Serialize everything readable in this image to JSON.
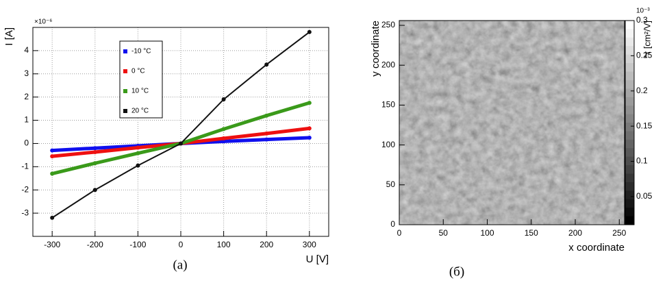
{
  "chart_data": [
    {
      "type": "line",
      "caption": "(a)",
      "x_label": "U [V]",
      "y_label": "I [A]",
      "y_multiplier": "×10⁻⁶",
      "x": [
        -300,
        -200,
        -100,
        0,
        100,
        200,
        300
      ],
      "series": [
        {
          "name": "-10 °C",
          "color": "#1010ee",
          "values": [
            -0.3,
            -0.2,
            -0.1,
            0,
            0.09,
            0.17,
            0.25
          ]
        },
        {
          "name": "0 °C",
          "color": "#ee1010",
          "values": [
            -0.55,
            -0.37,
            -0.18,
            0,
            0.22,
            0.43,
            0.65
          ]
        },
        {
          "name": "10 °C",
          "color": "#3a9a1a",
          "values": [
            -1.3,
            -0.85,
            -0.42,
            0,
            0.62,
            1.2,
            1.75
          ]
        },
        {
          "name": "20 °C",
          "color": "#111111",
          "values": [
            -3.2,
            -2.0,
            -0.95,
            0,
            1.9,
            3.4,
            4.8
          ]
        }
      ],
      "xlim": [
        -345,
        345
      ],
      "xticks": [
        -300,
        -200,
        -100,
        0,
        100,
        200,
        300
      ],
      "ylim": [
        -4,
        5
      ],
      "yticks": [
        -3,
        -2,
        -1,
        0,
        1,
        2,
        3,
        4
      ],
      "grid": true
    },
    {
      "type": "heatmap",
      "caption": "(б)",
      "x_label": "x coordinate",
      "y_label": "y coordinate",
      "xlim": [
        0,
        256
      ],
      "xticks": [
        0,
        50,
        100,
        150,
        200,
        250
      ],
      "ylim": [
        0,
        256
      ],
      "yticks": [
        0,
        50,
        100,
        150,
        200,
        250
      ],
      "colorbar_label": "*τ [cm²/V]",
      "colorbar_multiplier": "10⁻³",
      "clim": [
        0.01,
        0.3
      ],
      "cticks": [
        0.05,
        0.1,
        0.15,
        0.2,
        0.25,
        0.3
      ]
    }
  ]
}
